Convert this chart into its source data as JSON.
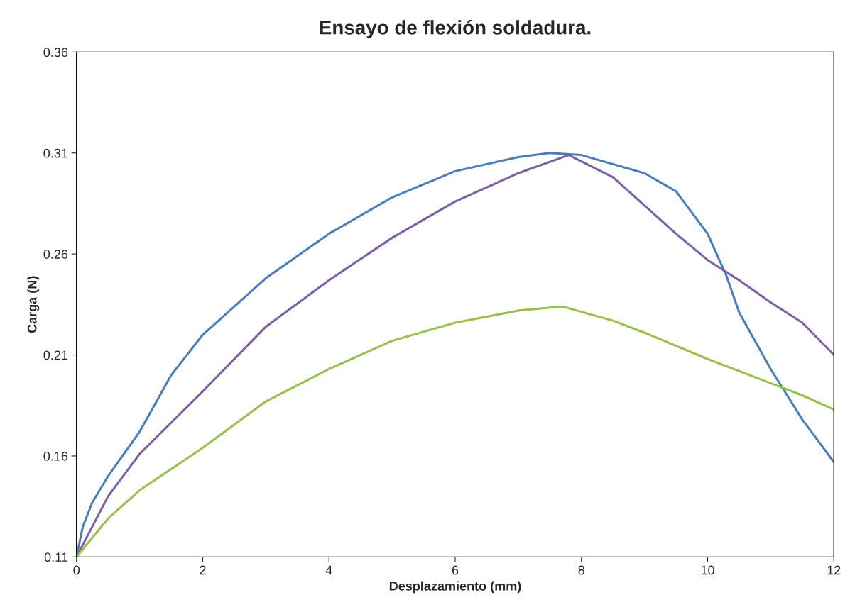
{
  "chart_data": {
    "type": "line",
    "title": "Ensayo de flexión soldadura.",
    "xlabel": "Desplazamiento (mm)",
    "ylabel": "Carga (N)",
    "xlim": [
      0,
      12
    ],
    "xticks": [
      0,
      2,
      4,
      6,
      8,
      10,
      12
    ],
    "ylim": [
      0.11,
      0.36
    ],
    "yticks": [
      0.11,
      0.16,
      0.21,
      0.26,
      0.31,
      0.36
    ],
    "grid": false,
    "marker": "none",
    "line_style": "solid",
    "series": [
      {
        "color": "#4a7ebb",
        "x": [
          0,
          0.1,
          0.25,
          0.5,
          1,
          1.5,
          2,
          3,
          4,
          5,
          6,
          7,
          7.5,
          8,
          9,
          9.5,
          10,
          10.3,
          10.5,
          11,
          11.5,
          12
        ],
        "values": [
          0.11,
          0.125,
          0.137,
          0.15,
          0.172,
          0.2,
          0.22,
          0.248,
          0.27,
          0.288,
          0.301,
          0.308,
          0.31,
          0.309,
          0.3,
          0.291,
          0.27,
          0.249,
          0.231,
          0.203,
          0.178,
          0.157
        ]
      },
      {
        "color": "#7d5fa5",
        "x": [
          0,
          0.5,
          1,
          2,
          3,
          4,
          5,
          6,
          7,
          7.8,
          8.5,
          9,
          9.5,
          10,
          10.5,
          11,
          11.5,
          12
        ],
        "values": [
          0.11,
          0.14,
          0.161,
          0.192,
          0.224,
          0.247,
          0.268,
          0.286,
          0.3,
          0.309,
          0.298,
          0.284,
          0.27,
          0.257,
          0.247,
          0.236,
          0.226,
          0.21
        ]
      },
      {
        "color": "#98c04c",
        "x": [
          0,
          0.5,
          1,
          2,
          3,
          4,
          5,
          6,
          7,
          7.7,
          8.5,
          9,
          10,
          11,
          11.5,
          12
        ],
        "values": [
          0.11,
          0.129,
          0.143,
          0.164,
          0.187,
          0.203,
          0.217,
          0.226,
          0.232,
          0.234,
          0.227,
          0.221,
          0.208,
          0.196,
          0.19,
          0.183
        ]
      }
    ]
  }
}
